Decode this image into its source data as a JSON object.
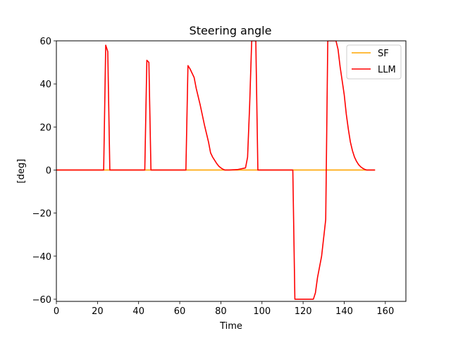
{
  "chart_data": {
    "type": "line",
    "title": "Steering angle",
    "xlabel": "Time",
    "ylabel": "[deg]",
    "xlim": [
      0,
      170
    ],
    "ylim": [
      -61,
      60
    ],
    "xticks": [
      0,
      20,
      40,
      60,
      80,
      100,
      120,
      140,
      160
    ],
    "xtick_labels": [
      "0",
      "20",
      "40",
      "60",
      "80",
      "100",
      "120",
      "140",
      "160"
    ],
    "yticks": [
      -60,
      -40,
      -20,
      0,
      20,
      40,
      60
    ],
    "ytick_labels": [
      "−60",
      "−40",
      "−20",
      "0",
      "20",
      "40",
      "60"
    ],
    "grid": false,
    "legend_position": "top-right",
    "series": [
      {
        "name": "SF",
        "color": "#FFA500",
        "points": [
          [
            0,
            0
          ],
          [
            155,
            0
          ]
        ]
      },
      {
        "name": "LLM",
        "color": "#FF0000",
        "points": [
          [
            0,
            0
          ],
          [
            23,
            0
          ],
          [
            24,
            58
          ],
          [
            25,
            55
          ],
          [
            26,
            0
          ],
          [
            43,
            0
          ],
          [
            44,
            51
          ],
          [
            45,
            50
          ],
          [
            46,
            0
          ],
          [
            63,
            0
          ],
          [
            64,
            48.5
          ],
          [
            65,
            47
          ],
          [
            66,
            45
          ],
          [
            67,
            43
          ],
          [
            68,
            38
          ],
          [
            70,
            30
          ],
          [
            72,
            21
          ],
          [
            74,
            13
          ],
          [
            75,
            8
          ],
          [
            76,
            6
          ],
          [
            77,
            4.5
          ],
          [
            78,
            3
          ],
          [
            79,
            1.8
          ],
          [
            80,
            1
          ],
          [
            81,
            0.4
          ],
          [
            82,
            0
          ],
          [
            84,
            0
          ],
          [
            88,
            0.2
          ],
          [
            92,
            1
          ],
          [
            93,
            6
          ],
          [
            94,
            30
          ],
          [
            95,
            60
          ],
          [
            97,
            60
          ],
          [
            98,
            0
          ],
          [
            115,
            0
          ],
          [
            116,
            -60
          ],
          [
            125,
            -60
          ],
          [
            126,
            -57
          ],
          [
            127,
            -50
          ],
          [
            129,
            -40
          ],
          [
            131,
            -23
          ],
          [
            132,
            60
          ],
          [
            136,
            60
          ],
          [
            137,
            56
          ],
          [
            138,
            48
          ],
          [
            140,
            35
          ],
          [
            141,
            26
          ],
          [
            142,
            19
          ],
          [
            143,
            13
          ],
          [
            144,
            9
          ],
          [
            145,
            6
          ],
          [
            146,
            4
          ],
          [
            147,
            2.5
          ],
          [
            148,
            1.5
          ],
          [
            149,
            0.8
          ],
          [
            150,
            0.3
          ],
          [
            151,
            0
          ],
          [
            155,
            0
          ]
        ]
      }
    ]
  }
}
